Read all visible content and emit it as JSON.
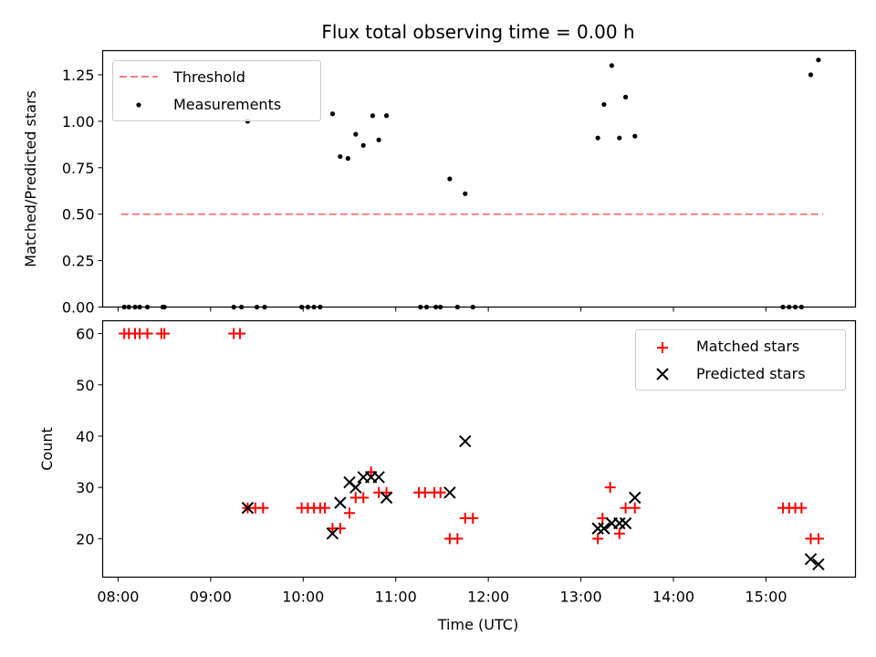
{
  "chart_data": [
    {
      "type": "scatter",
      "title": "Flux total observing time = 0.00 h",
      "xlabel": "",
      "ylabel": "Matched/Predicted stars",
      "xlim": [
        "07:50",
        "15:58"
      ],
      "ylim": [
        0,
        1.38
      ],
      "yticks": [
        "0.00",
        "0.25",
        "0.50",
        "0.75",
        "1.00",
        "1.25"
      ],
      "ytick_values": [
        0,
        0.25,
        0.5,
        0.75,
        1.0,
        1.25
      ],
      "legend": {
        "placement": "upper-left",
        "entries": [
          "Threshold",
          "Measurements"
        ]
      },
      "threshold": {
        "name": "Threshold",
        "value": 0.5,
        "x_start": "08:02",
        "x_end": "15:37",
        "color": "#f08080",
        "style": "dashed"
      },
      "series": [
        {
          "name": "Measurements",
          "color": "#000000",
          "marker": "dot",
          "points": [
            [
              "08:04",
              0
            ],
            [
              "08:07",
              0
            ],
            [
              "08:11",
              0
            ],
            [
              "08:14",
              0
            ],
            [
              "08:19",
              0
            ],
            [
              "08:29",
              0
            ],
            [
              "08:30",
              0
            ],
            [
              "09:15",
              0
            ],
            [
              "09:20",
              0
            ],
            [
              "09:24",
              1.0
            ],
            [
              "09:30",
              0
            ],
            [
              "09:35",
              0
            ],
            [
              "09:59",
              0
            ],
            [
              "10:03",
              0
            ],
            [
              "10:07",
              0
            ],
            [
              "10:11",
              0
            ],
            [
              "10:19",
              1.04
            ],
            [
              "10:24",
              0.81
            ],
            [
              "10:29",
              0.8
            ],
            [
              "10:34",
              0.93
            ],
            [
              "10:39",
              0.87
            ],
            [
              "10:45",
              1.03
            ],
            [
              "10:49",
              0.9
            ],
            [
              "10:54",
              1.03
            ],
            [
              "11:16",
              0
            ],
            [
              "11:20",
              0
            ],
            [
              "11:26",
              0
            ],
            [
              "11:29",
              0
            ],
            [
              "11:35",
              0.69
            ],
            [
              "11:40",
              0
            ],
            [
              "11:45",
              0.61
            ],
            [
              "11:50",
              0
            ],
            [
              "13:11",
              0.91
            ],
            [
              "13:15",
              1.09
            ],
            [
              "13:20",
              1.3
            ],
            [
              "13:25",
              0.91
            ],
            [
              "13:29",
              1.13
            ],
            [
              "13:35",
              0.92
            ],
            [
              "15:11",
              0
            ],
            [
              "15:15",
              0
            ],
            [
              "15:19",
              0
            ],
            [
              "15:23",
              0
            ],
            [
              "15:29",
              1.25
            ],
            [
              "15:34",
              1.33
            ]
          ]
        }
      ]
    },
    {
      "type": "scatter",
      "title": "",
      "xlabel": "Time (UTC)",
      "ylabel": "Count",
      "xlim": [
        "07:50",
        "15:58"
      ],
      "ylim": [
        12.5,
        62.5
      ],
      "yticks": [
        "20",
        "30",
        "40",
        "50",
        "60"
      ],
      "ytick_values": [
        20,
        30,
        40,
        50,
        60
      ],
      "xticks": [
        "08:00",
        "09:00",
        "10:00",
        "11:00",
        "12:00",
        "13:00",
        "14:00",
        "15:00"
      ],
      "legend": {
        "placement": "upper-right",
        "entries": [
          "Matched stars",
          "Predicted stars"
        ]
      },
      "series": [
        {
          "name": "Matched stars",
          "color": "#ff0000",
          "marker": "plus",
          "points": [
            [
              "08:04",
              60
            ],
            [
              "08:07",
              60
            ],
            [
              "08:11",
              60
            ],
            [
              "08:14",
              60
            ],
            [
              "08:19",
              60
            ],
            [
              "08:28",
              60
            ],
            [
              "08:30",
              60
            ],
            [
              "09:15",
              60
            ],
            [
              "09:19",
              60
            ],
            [
              "09:24",
              26
            ],
            [
              "09:29",
              26
            ],
            [
              "09:34",
              26
            ],
            [
              "09:59",
              26
            ],
            [
              "10:03",
              26
            ],
            [
              "10:07",
              26
            ],
            [
              "10:11",
              26
            ],
            [
              "10:14",
              26
            ],
            [
              "10:19",
              22
            ],
            [
              "10:24",
              22
            ],
            [
              "10:30",
              25
            ],
            [
              "10:34",
              28
            ],
            [
              "10:39",
              28
            ],
            [
              "10:44",
              33
            ],
            [
              "10:49",
              29
            ],
            [
              "10:54",
              29
            ],
            [
              "11:15",
              29
            ],
            [
              "11:19",
              29
            ],
            [
              "11:25",
              29
            ],
            [
              "11:29",
              29
            ],
            [
              "11:35",
              20
            ],
            [
              "11:40",
              20
            ],
            [
              "11:45",
              24
            ],
            [
              "11:50",
              24
            ],
            [
              "13:11",
              20
            ],
            [
              "13:14",
              24
            ],
            [
              "13:19",
              30
            ],
            [
              "13:25",
              21
            ],
            [
              "13:29",
              26
            ],
            [
              "13:35",
              26
            ],
            [
              "15:11",
              26
            ],
            [
              "15:15",
              26
            ],
            [
              "15:19",
              26
            ],
            [
              "15:23",
              26
            ],
            [
              "15:29",
              20
            ],
            [
              "15:34",
              20
            ]
          ]
        },
        {
          "name": "Predicted stars",
          "color": "#000000",
          "marker": "x",
          "points": [
            [
              "09:24",
              26
            ],
            [
              "10:19",
              21
            ],
            [
              "10:24",
              27
            ],
            [
              "10:30",
              31
            ],
            [
              "10:34",
              30
            ],
            [
              "10:39",
              32
            ],
            [
              "10:44",
              32
            ],
            [
              "10:49",
              32
            ],
            [
              "10:54",
              28
            ],
            [
              "11:35",
              29
            ],
            [
              "11:45",
              39
            ],
            [
              "13:11",
              22
            ],
            [
              "13:15",
              22
            ],
            [
              "13:20",
              23
            ],
            [
              "13:25",
              23
            ],
            [
              "13:29",
              23
            ],
            [
              "13:35",
              28
            ],
            [
              "15:29",
              16
            ],
            [
              "15:34",
              15
            ]
          ]
        }
      ]
    }
  ]
}
